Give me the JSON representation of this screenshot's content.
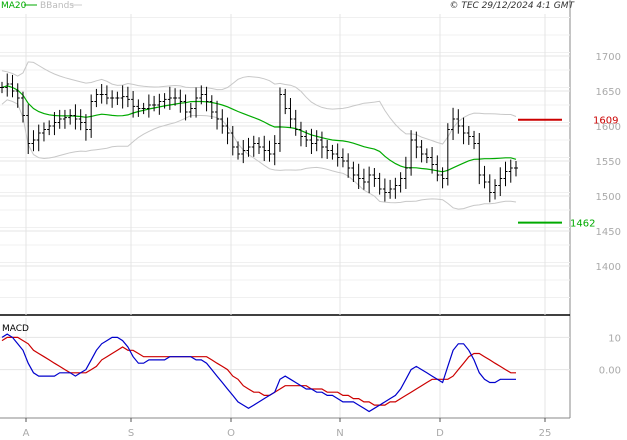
{
  "header": {
    "indicator_ma": "MA20",
    "indicator_bb": "BBands",
    "copyright": "© TEC 29/12/2024 4:1 GMT"
  },
  "colors": {
    "price_bar": "#000000",
    "ma": "#00aa00",
    "bands": "#c8c8c8",
    "grid": "#e4e4e4",
    "resistance": "#cc0000",
    "support": "#00aa00",
    "macd": "#0000cc",
    "macd_signal": "#cc0000"
  },
  "chart_data": [
    {
      "type": "ohlc",
      "x_ticks": [
        "A",
        "S",
        "O",
        "N",
        "D",
        "25"
      ],
      "y_ticks": [
        1400,
        1450,
        1500,
        1550,
        1600,
        1650,
        1700
      ],
      "ylim": [
        1330,
        1760
      ],
      "grid": true,
      "levels": [
        {
          "name": "resistance",
          "value": 1609,
          "label": "1609"
        },
        {
          "name": "support",
          "value": 1462,
          "label": "1462"
        }
      ],
      "close": [
        1655,
        1660,
        1650,
        1640,
        1615,
        1575,
        1580,
        1590,
        1595,
        1600,
        1605,
        1610,
        1612,
        1615,
        1610,
        1605,
        1595,
        1635,
        1645,
        1645,
        1640,
        1640,
        1640,
        1642,
        1638,
        1628,
        1625,
        1625,
        1630,
        1630,
        1635,
        1638,
        1640,
        1640,
        1635,
        1620,
        1625,
        1640,
        1645,
        1635,
        1620,
        1610,
        1600,
        1590,
        1570,
        1560,
        1565,
        1570,
        1575,
        1570,
        1565,
        1560,
        1575,
        1645,
        1625,
        1610,
        1595,
        1585,
        1580,
        1575,
        1580,
        1570,
        1565,
        1560,
        1555,
        1550,
        1540,
        1530,
        1525,
        1520,
        1530,
        1525,
        1510,
        1505,
        1510,
        1515,
        1525,
        1540,
        1580,
        1570,
        1560,
        1555,
        1545,
        1530,
        1525,
        1595,
        1610,
        1600,
        1590,
        1585,
        1575,
        1530,
        1520,
        1505,
        1515,
        1525,
        1535,
        1540,
        1540
      ]
    },
    {
      "type": "line",
      "title": "MACD",
      "y_ticks": [
        0,
        10
      ],
      "tick_labels": [
        "0.00",
        "10"
      ],
      "ylim": [
        -15,
        16
      ],
      "series": [
        {
          "values": [
            10,
            11,
            10,
            8,
            6,
            2,
            -1,
            -2,
            -2,
            -2,
            -2,
            -1,
            -1,
            -1,
            -2,
            -1,
            0,
            3,
            6,
            8,
            9,
            10,
            10,
            9,
            7,
            4,
            2,
            2,
            3,
            3,
            3,
            3,
            4,
            4,
            4,
            4,
            4,
            3,
            3,
            2,
            0,
            -2,
            -4,
            -6,
            -8,
            -10,
            -11,
            -12,
            -11,
            -10,
            -9,
            -8,
            -7,
            -3,
            -2,
            -3,
            -4,
            -5,
            -6,
            -6,
            -7,
            -7,
            -8,
            -8,
            -9,
            -10,
            -10,
            -10,
            -11,
            -12,
            -13,
            -12,
            -11,
            -10,
            -9,
            -8,
            -6,
            -3,
            0,
            1,
            0,
            -1,
            -2,
            -3,
            -4,
            1,
            6,
            8,
            8,
            6,
            3,
            -1,
            -3,
            -4,
            -4,
            -3,
            -3,
            -3,
            -3
          ]
        },
        {
          "values": [
            9,
            10,
            10,
            10,
            9,
            8,
            6,
            5,
            4,
            3,
            2,
            1,
            0,
            -1,
            -1,
            -1,
            -1,
            0,
            1,
            3,
            4,
            5,
            6,
            7,
            6,
            6,
            5,
            4,
            4,
            4,
            4,
            4,
            4,
            4,
            4,
            4,
            4,
            4,
            4,
            4,
            3,
            2,
            1,
            0,
            -2,
            -3,
            -5,
            -6,
            -7,
            -7,
            -8,
            -8,
            -7,
            -6,
            -5,
            -5,
            -5,
            -5,
            -5,
            -6,
            -6,
            -6,
            -7,
            -7,
            -7,
            -8,
            -8,
            -9,
            -9,
            -10,
            -10,
            -11,
            -11,
            -11,
            -10,
            -10,
            -9,
            -8,
            -7,
            -6,
            -5,
            -4,
            -3,
            -3,
            -3,
            -3,
            -2,
            0,
            2,
            4,
            5,
            5,
            4,
            3,
            2,
            1,
            0,
            -1,
            -1
          ]
        }
      ]
    }
  ]
}
